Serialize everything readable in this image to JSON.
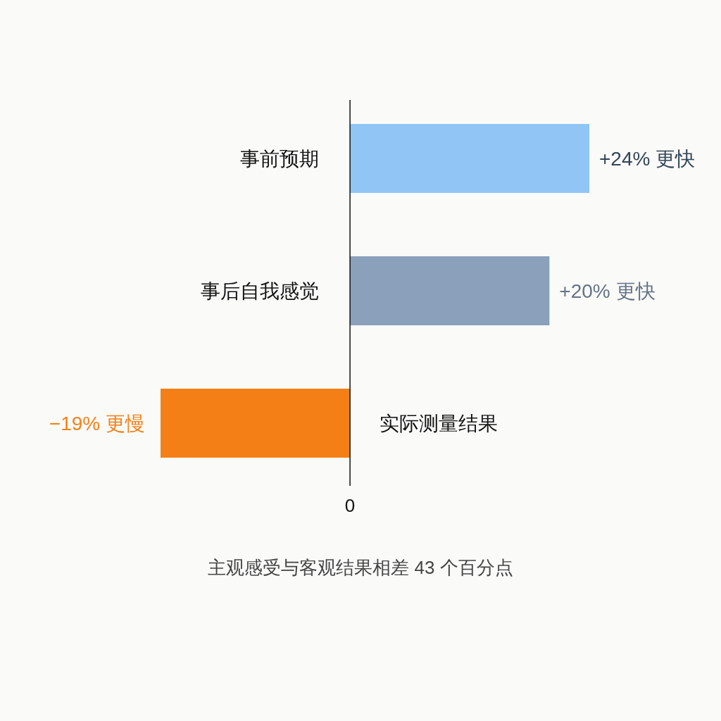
{
  "chart_data": {
    "type": "bar",
    "orientation": "horizontal",
    "categories": [
      "事前预期",
      "事后自我感觉",
      "实际测量结果"
    ],
    "values": [
      24,
      20,
      -19
    ],
    "colors": [
      "#90c5f5",
      "#8aa0bb",
      "#f57f17"
    ],
    "value_labels": [
      "+24% 更快",
      "+20% 更快",
      "−19% 更慢"
    ],
    "annotations": [
      "0",
      "主观感受与客观结果相差 43 个百分点"
    ]
  }
}
